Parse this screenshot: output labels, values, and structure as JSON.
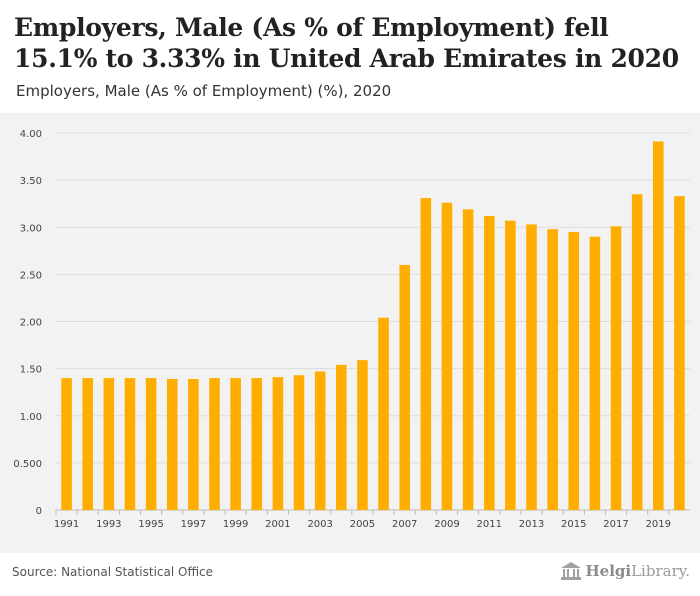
{
  "header": {
    "title": "Employers, Male (As % of Employment) fell 15.1% to 3.33% in United Arab Emirates in 2020",
    "subtitle": "Employers, Male (As % of Employment) (%), 2020"
  },
  "footer": {
    "source": "Source: National Statistical Office",
    "logo_bold": "Helgi",
    "logo_rest": "Library."
  },
  "colors": {
    "bar": "#ffad00",
    "plot_background": "#f2f2f2",
    "gridline": "#dcdcdc"
  },
  "chart_data": {
    "type": "bar",
    "title": "Employers, Male (As % of Employment) fell 15.1% to 3.33% in United Arab Emirates in 2020",
    "subtitle": "Employers, Male (As % of Employment) (%), 2020",
    "xlabel": "",
    "ylabel": "",
    "ylim": [
      0,
      4
    ],
    "yticks": [
      "0",
      "0.500",
      "1.00",
      "1.50",
      "2.00",
      "2.50",
      "3.00",
      "3.50",
      "4.00"
    ],
    "ytick_values": [
      0,
      0.5,
      1,
      1.5,
      2,
      2.5,
      3,
      3.5,
      4
    ],
    "grid": true,
    "categories": [
      "1991",
      "1992",
      "1993",
      "1994",
      "1995",
      "1996",
      "1997",
      "1998",
      "1999",
      "2000",
      "2001",
      "2002",
      "2003",
      "2004",
      "2005",
      "2006",
      "2007",
      "2008",
      "2009",
      "2010",
      "2011",
      "2012",
      "2013",
      "2014",
      "2015",
      "2016",
      "2017",
      "2018",
      "2019",
      "2020"
    ],
    "xtick_labels": [
      "1991",
      "1993",
      "1995",
      "1997",
      "1999",
      "2001",
      "2003",
      "2005",
      "2007",
      "2009",
      "2011",
      "2013",
      "2015",
      "2017",
      "2019"
    ],
    "values": [
      1.4,
      1.4,
      1.4,
      1.4,
      1.4,
      1.39,
      1.39,
      1.4,
      1.4,
      1.4,
      1.41,
      1.43,
      1.47,
      1.54,
      1.59,
      2.04,
      2.6,
      3.31,
      3.26,
      3.19,
      3.12,
      3.07,
      3.03,
      2.98,
      2.95,
      2.9,
      3.01,
      3.35,
      3.91,
      3.33
    ]
  }
}
